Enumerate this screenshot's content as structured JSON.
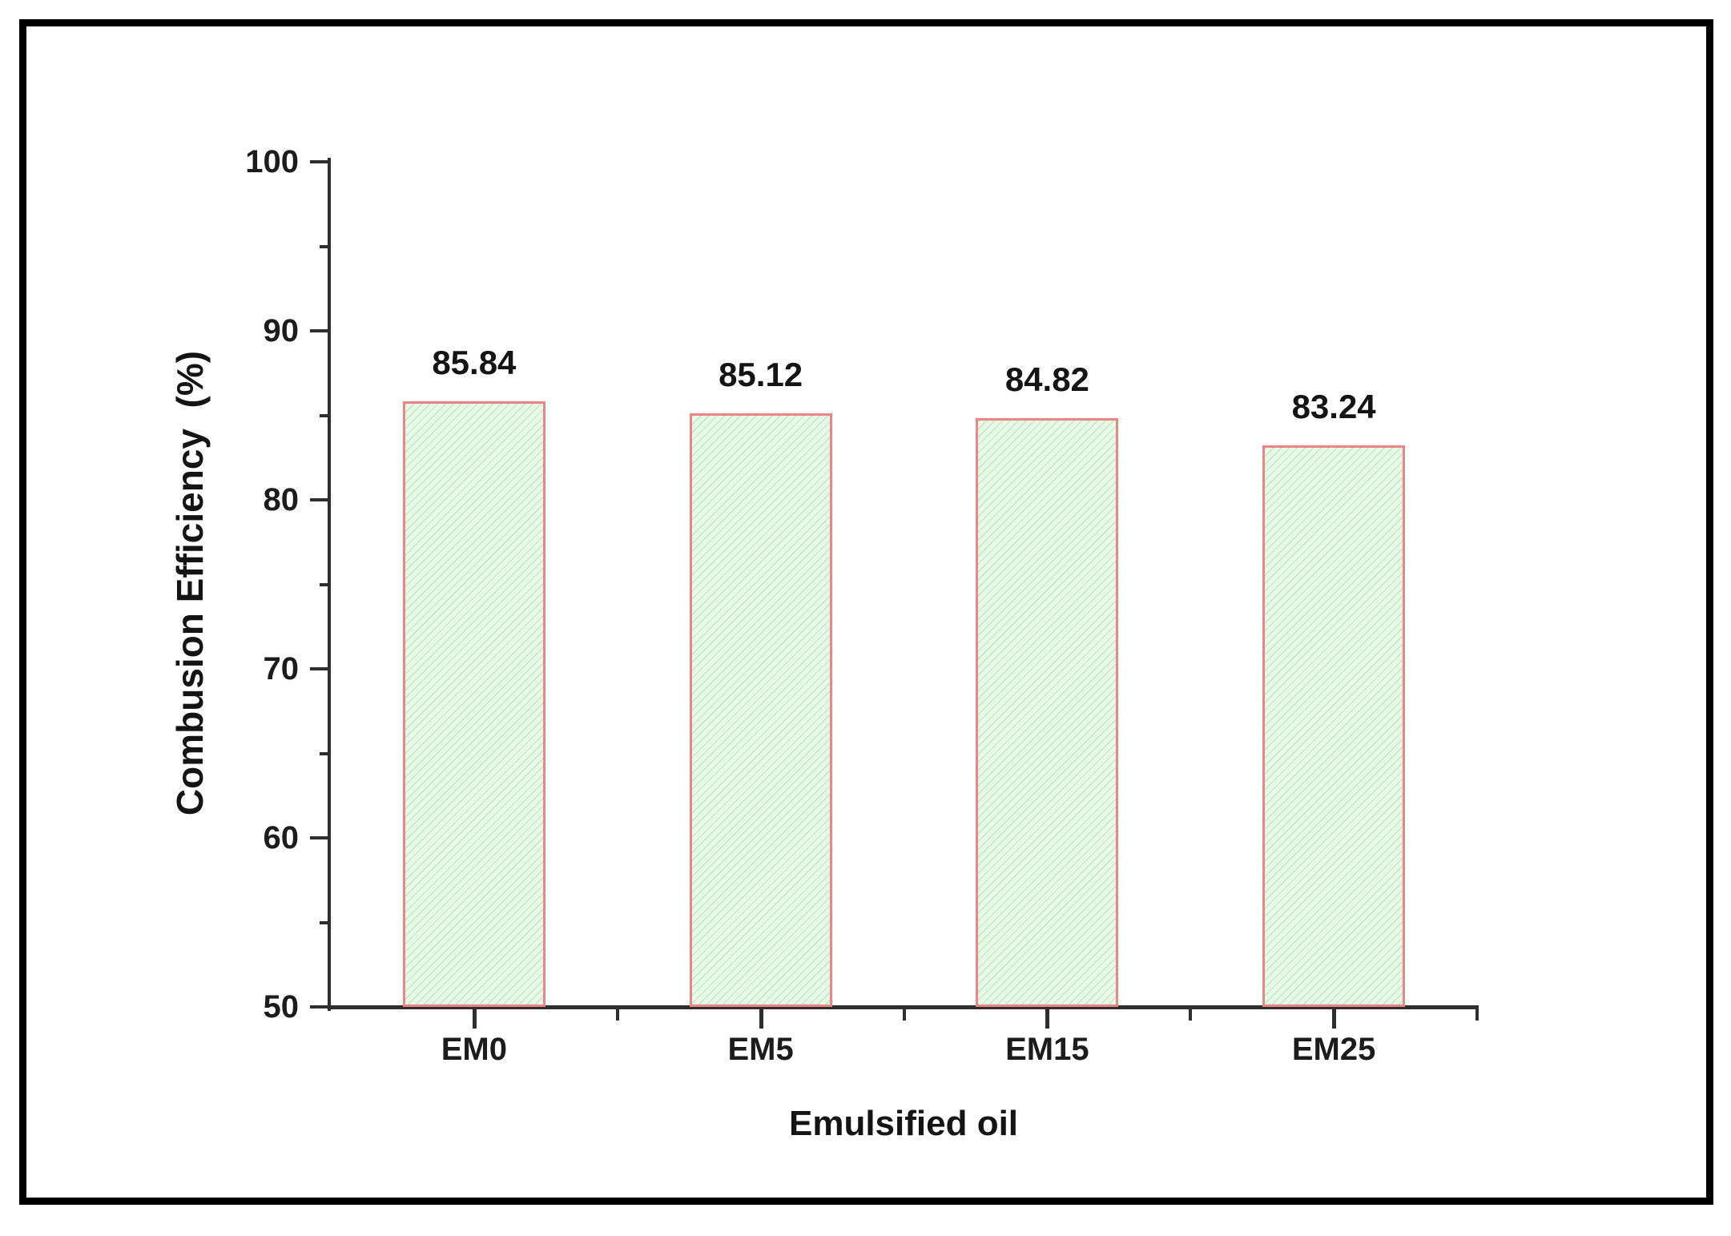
{
  "figure": {
    "background_color": "#ffffff",
    "border_color": "#000000"
  },
  "chart_data": {
    "type": "bar",
    "title": "",
    "categories": [
      "EM0",
      "EM5",
      "EM15",
      "EM25"
    ],
    "values": [
      85.84,
      85.12,
      84.82,
      83.24
    ],
    "value_labels": [
      "85.84",
      "85.12",
      "84.82",
      "83.24"
    ],
    "xlabel": "Emulsified oil",
    "ylabel": "Combusion Efficiency  (%)",
    "ylim": [
      50,
      100
    ],
    "yticks_major": [
      50,
      60,
      70,
      80,
      90,
      100
    ],
    "yticks_minor": [
      55,
      65,
      75,
      85,
      95
    ],
    "xticks_minor_at_boundaries": true,
    "grid": false,
    "legend_position": "none",
    "bar_fill_color": "#e9f9e9",
    "bar_hatch_color": "#c2ecc2",
    "bar_border_color": "#ee8484",
    "axis_color": "#2e2e2e",
    "text_color": "#141414"
  }
}
